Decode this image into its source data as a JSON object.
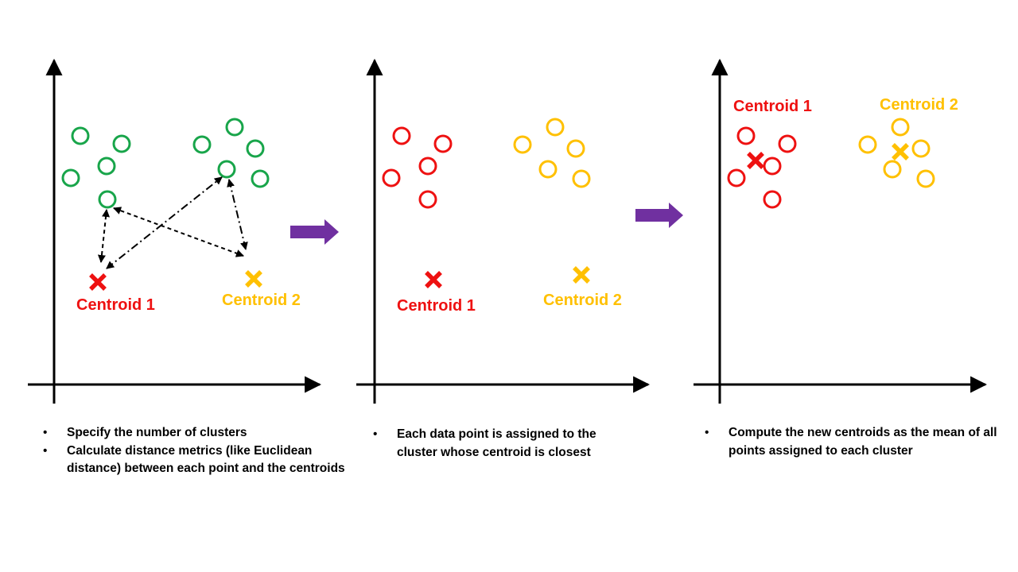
{
  "colors": {
    "green": "#18a54a",
    "red": "#ee1111",
    "yellow": "#ffc000",
    "arrow": "#7030a0",
    "axis": "#000000"
  },
  "labels": {
    "centroid_1": "Centroid 1",
    "centroid_2": "Centroid 2"
  },
  "panels": [
    {
      "name": "specify-and-measure",
      "captions": [
        "Specify the number of clusters",
        "Calculate distance metrics (like Euclidean distance) between each point and the centroids"
      ]
    },
    {
      "name": "assign-points",
      "captions": [
        "Each data point is assigned to the cluster whose centroid is closest"
      ]
    },
    {
      "name": "update-centroids",
      "captions": [
        "Compute the new centroids as the mean of all points assigned to each cluster"
      ]
    }
  ],
  "icons": {
    "centroid_marker": "cross-mark-icon",
    "data_point": "circle-icon",
    "step_arrow": "right-arrow-icon"
  }
}
